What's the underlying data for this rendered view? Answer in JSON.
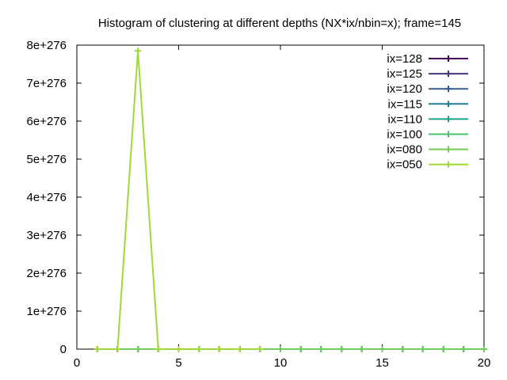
{
  "chart_data": {
    "type": "line",
    "title": "Histogram of clustering at different depths (NX*ix/nbin=x); frame=145",
    "xlabel": "",
    "ylabel": "",
    "xlim": [
      0,
      20
    ],
    "ylim": [
      0,
      8e+276
    ],
    "x_ticks": [
      0,
      5,
      10,
      15,
      20
    ],
    "x_tick_labels": [
      "0",
      "5",
      "10",
      "15",
      "20"
    ],
    "y_ticks": [
      0,
      1e+276,
      2e+276,
      3e+276,
      4e+276,
      5e+276,
      6e+276,
      7e+276,
      8e+276
    ],
    "y_tick_labels": [
      "0",
      "1e+276",
      "2e+276",
      "3e+276",
      "4e+276",
      "5e+276",
      "6e+276",
      "7e+276",
      "8e+276"
    ],
    "grid": false,
    "legend_position": "top-right",
    "series": [
      {
        "name": "ix=128",
        "color": "#440154",
        "x": [
          1,
          2,
          3,
          4,
          5,
          6,
          7,
          8,
          9,
          10,
          11,
          12,
          13,
          14,
          15,
          16,
          17,
          18,
          19,
          20
        ],
        "y": [
          0,
          0,
          0,
          0,
          0,
          0,
          0,
          0,
          0,
          0,
          0,
          0,
          0,
          0,
          0,
          0,
          0,
          0,
          0,
          0
        ]
      },
      {
        "name": "ix=125",
        "color": "#46327e",
        "x": [
          1,
          2,
          3,
          4,
          5,
          6,
          7,
          8,
          9,
          10,
          11,
          12,
          13,
          14,
          15,
          16,
          17,
          18,
          19,
          20
        ],
        "y": [
          0,
          0,
          0,
          0,
          0,
          0,
          0,
          0,
          0,
          0,
          0,
          0,
          0,
          0,
          0,
          0,
          0,
          0,
          0,
          0
        ]
      },
      {
        "name": "ix=120",
        "color": "#365c8d",
        "x": [
          1,
          2,
          3,
          4,
          5,
          6,
          7,
          8,
          9,
          10,
          11,
          12,
          13,
          14,
          15,
          16,
          17,
          18,
          19,
          20
        ],
        "y": [
          0,
          0,
          0,
          0,
          0,
          0,
          0,
          0,
          0,
          0,
          0,
          0,
          0,
          0,
          0,
          0,
          0,
          0,
          0,
          0
        ]
      },
      {
        "name": "ix=115",
        "color": "#277f8e",
        "x": [
          1,
          2,
          3,
          4,
          5,
          6,
          7,
          8,
          9,
          10,
          11,
          12,
          13,
          14,
          15,
          16,
          17,
          18,
          19,
          20
        ],
        "y": [
          0,
          0,
          0,
          0,
          0,
          0,
          0,
          0,
          0,
          0,
          0,
          0,
          0,
          0,
          0,
          0,
          0,
          0,
          0,
          0
        ]
      },
      {
        "name": "ix=110",
        "color": "#1fa187",
        "x": [
          1,
          2,
          3,
          4,
          5,
          6,
          7,
          8,
          9,
          10,
          11,
          12,
          13,
          14,
          15,
          16,
          17,
          18,
          19,
          20
        ],
        "y": [
          0,
          0,
          0,
          0,
          0,
          0,
          0,
          0,
          0,
          0,
          0,
          0,
          0,
          0,
          0,
          0,
          0,
          0,
          0,
          0
        ]
      },
      {
        "name": "ix=100",
        "color": "#4ac16d",
        "x": [
          1,
          2,
          3,
          4,
          5,
          6,
          7,
          8,
          9,
          10,
          11,
          12,
          13,
          14,
          15,
          16,
          17,
          18,
          19,
          20
        ],
        "y": [
          0,
          0,
          0,
          0,
          0,
          0,
          0,
          0,
          0,
          0,
          0,
          0,
          0,
          0,
          0,
          0,
          0,
          0,
          0,
          0
        ]
      },
      {
        "name": "ix=080",
        "color": "#6ece58",
        "x": [
          1,
          2,
          3,
          4,
          5,
          6,
          7,
          8,
          9,
          10,
          11,
          12,
          13,
          14,
          15,
          16,
          17,
          18,
          19,
          20
        ],
        "y": [
          0,
          0,
          0,
          0,
          0,
          0,
          0,
          0,
          0,
          0,
          0,
          0,
          0,
          0,
          0,
          0,
          0,
          0,
          0,
          0
        ]
      },
      {
        "name": "ix=050",
        "color": "#a0da39",
        "x": [
          1,
          2,
          3,
          4,
          5,
          6,
          7,
          8,
          9
        ],
        "y": [
          0,
          0,
          7.85e+276,
          0,
          0,
          0,
          0,
          0,
          0
        ]
      }
    ]
  }
}
